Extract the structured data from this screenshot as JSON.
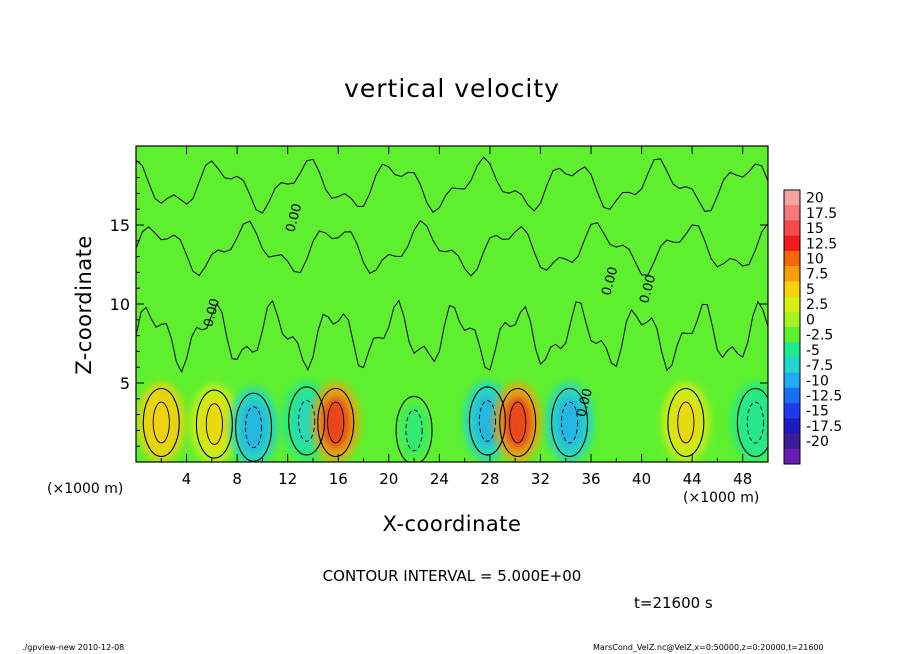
{
  "chart_data": {
    "type": "heatmap",
    "title": "vertical velocity",
    "xlabel": "X-coordinate",
    "ylabel": "Z-coordinate",
    "x_unit": "(×1000 m)",
    "xlim": [
      0,
      50
    ],
    "ylim": [
      0,
      20
    ],
    "x_ticks": [
      4,
      8,
      12,
      16,
      20,
      24,
      28,
      32,
      36,
      40,
      44,
      48
    ],
    "y_ticks": [
      5,
      10,
      15
    ],
    "contour_interval_label": "CONTOUR INTERVAL = 5.000E+00",
    "contour_label": "0.00",
    "colorbar": {
      "levels": [
        20,
        17.5,
        15,
        12.5,
        10,
        7.5,
        5,
        2.5,
        0,
        -2.5,
        -5,
        -7.5,
        -10,
        -12.5,
        -15,
        -17.5,
        -20
      ],
      "colors": [
        "#f6a3a3",
        "#f57878",
        "#f54a4a",
        "#f21a1a",
        "#f5680a",
        "#f5a00a",
        "#f5d20a",
        "#d9ee14",
        "#a7f022",
        "#5ef02f",
        "#20e890",
        "#22d4d2",
        "#22aaf2",
        "#1a6ef5",
        "#1f3af0",
        "#1c1ac2",
        "#3c1d99",
        "#6a1db3"
      ]
    },
    "features": [
      {
        "x": 2,
        "z": 2.5,
        "w": 5,
        "sign": "positive"
      },
      {
        "x": 6.2,
        "z": 2.4,
        "w": 4.5,
        "sign": "positive"
      },
      {
        "x": 9.3,
        "z": 2.2,
        "w": -6,
        "sign": "negative"
      },
      {
        "x": 13.5,
        "z": 2.6,
        "w": -5,
        "sign": "negative"
      },
      {
        "x": 15.8,
        "z": 2.5,
        "w": 9,
        "sign": "positive"
      },
      {
        "x": 22,
        "z": 2,
        "w": -2,
        "sign": "negative"
      },
      {
        "x": 27.8,
        "z": 2.6,
        "w": -6,
        "sign": "negative"
      },
      {
        "x": 30.2,
        "z": 2.5,
        "w": 9.5,
        "sign": "positive"
      },
      {
        "x": 34.3,
        "z": 2.5,
        "w": -6,
        "sign": "negative"
      },
      {
        "x": 43.5,
        "z": 2.5,
        "w": 4,
        "sign": "positive"
      },
      {
        "x": 49,
        "z": 2.5,
        "w": -3,
        "sign": "negative"
      }
    ],
    "time_label": "t=21600 s"
  },
  "footer": {
    "left": "./gpview-new   2010-12-08",
    "right": "MarsCond_VelZ.nc@VelZ,x=0:50000,z=0:20000,t=21600"
  }
}
